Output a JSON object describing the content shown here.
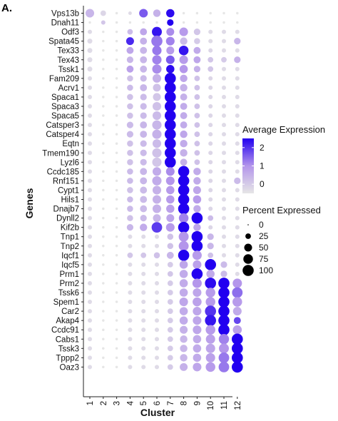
{
  "panel_label": "A.",
  "chart_data": {
    "type": "dotplot",
    "xlabel": "Cluster",
    "ylabel": "Genes",
    "clusters": [
      "1",
      "2",
      "3",
      "4",
      "5",
      "6",
      "7",
      "8",
      "9",
      "10",
      "11",
      "12"
    ],
    "genes": [
      "Vps13b",
      "Dnah11",
      "Odf3",
      "Spata45",
      "Tex33",
      "Tex43",
      "Tssk1",
      "Fam209",
      "Acrv1",
      "Spaca1",
      "Spaca3",
      "Spaca5",
      "Catsper3",
      "Catsper4",
      "Eqtn",
      "Tmem190",
      "Lyzl6",
      "Ccdc185",
      "Rnf151",
      "Cypt1",
      "Hils1",
      "Dnajb7",
      "Dynll2",
      "Kif2b",
      "Tnp1",
      "Tnp2",
      "Iqcf1",
      "Iqcf5",
      "Prm1",
      "Prm2",
      "Tssk6",
      "Spem1",
      "Car2",
      "Akap4",
      "Ccdc91",
      "Cabs1",
      "Tssk3",
      "Tppp2",
      "Oaz3"
    ],
    "avg_expression": [
      [
        0.4,
        -0.2,
        -0.5,
        -0.3,
        1.6,
        0.5,
        2.4,
        -0.5,
        -0.5,
        -0.5,
        -0.5,
        -0.5
      ],
      [
        -0.5,
        0.1,
        -0.5,
        -0.5,
        -0.5,
        -0.5,
        2.5,
        -0.5,
        -0.5,
        -0.5,
        -0.5,
        -0.5
      ],
      [
        -0.3,
        -0.5,
        -0.5,
        0.3,
        0.7,
        2.3,
        1.1,
        0.9,
        0.1,
        -0.3,
        -0.3,
        -0.3
      ],
      [
        -0.3,
        -0.5,
        -0.5,
        2.1,
        0.5,
        1.3,
        1.2,
        0.3,
        0.0,
        -0.3,
        -0.3,
        0.4
      ],
      [
        -0.3,
        -0.5,
        -0.5,
        0.7,
        0.4,
        1.3,
        0.9,
        2.3,
        0.6,
        -0.2,
        -0.3,
        -0.3
      ],
      [
        -0.3,
        -0.5,
        -0.5,
        0.4,
        0.4,
        1.2,
        1.6,
        0.9,
        0.7,
        0.1,
        0.0,
        0.5
      ],
      [
        -0.3,
        -0.5,
        -0.5,
        0.8,
        0.4,
        1.1,
        2.4,
        1.0,
        0.5,
        0.1,
        -0.3,
        -0.3
      ],
      [
        -0.3,
        -0.5,
        -0.5,
        0.2,
        0.3,
        0.5,
        2.5,
        0.7,
        0.2,
        -0.2,
        -0.3,
        -0.3
      ],
      [
        -0.3,
        -0.5,
        -0.5,
        0.3,
        0.4,
        0.2,
        2.5,
        0.5,
        0.2,
        -0.2,
        -0.3,
        -0.3
      ],
      [
        -0.3,
        -0.5,
        -0.5,
        0.2,
        0.3,
        0.1,
        2.5,
        0.5,
        0.2,
        -0.2,
        -0.3,
        -0.3
      ],
      [
        -0.3,
        -0.5,
        -0.5,
        0.2,
        0.3,
        0.2,
        2.5,
        0.6,
        0.2,
        -0.2,
        -0.3,
        -0.3
      ],
      [
        -0.3,
        -0.5,
        -0.5,
        0.2,
        0.3,
        0.3,
        2.5,
        0.6,
        0.2,
        -0.2,
        -0.3,
        -0.3
      ],
      [
        -0.3,
        -0.5,
        -0.5,
        0.3,
        0.4,
        0.4,
        2.5,
        0.6,
        0.2,
        -0.2,
        -0.3,
        -0.3
      ],
      [
        -0.3,
        -0.5,
        -0.5,
        0.3,
        0.4,
        0.5,
        2.5,
        0.7,
        0.2,
        -0.2,
        -0.3,
        -0.3
      ],
      [
        -0.3,
        -0.5,
        -0.5,
        0.2,
        0.3,
        0.3,
        2.5,
        0.6,
        0.2,
        -0.2,
        -0.3,
        -0.3
      ],
      [
        -0.3,
        -0.5,
        -0.5,
        0.2,
        0.3,
        0.2,
        2.5,
        0.5,
        0.2,
        -0.2,
        -0.3,
        -0.3
      ],
      [
        -0.3,
        -0.5,
        -0.5,
        0.2,
        0.3,
        0.1,
        2.5,
        0.5,
        0.2,
        -0.2,
        -0.3,
        -0.3
      ],
      [
        -0.3,
        -0.5,
        -0.5,
        0.3,
        0.4,
        0.6,
        1.1,
        2.5,
        0.6,
        -0.2,
        -0.3,
        -0.3
      ],
      [
        -0.3,
        -0.5,
        -0.5,
        0.3,
        0.4,
        0.6,
        1.0,
        2.5,
        0.6,
        -0.2,
        -0.3,
        0.3
      ],
      [
        -0.3,
        -0.5,
        -0.5,
        0.2,
        0.3,
        0.5,
        0.9,
        2.5,
        0.7,
        -0.2,
        -0.3,
        -0.3
      ],
      [
        -0.3,
        -0.5,
        -0.5,
        0.3,
        0.3,
        0.5,
        0.9,
        2.5,
        0.9,
        -0.2,
        -0.3,
        -0.3
      ],
      [
        -0.3,
        -0.5,
        -0.5,
        0.3,
        0.3,
        0.5,
        0.8,
        2.5,
        0.6,
        -0.2,
        -0.3,
        -0.3
      ],
      [
        -0.3,
        -0.5,
        -0.5,
        0.2,
        0.3,
        0.4,
        0.7,
        1.2,
        2.5,
        0.3,
        -0.3,
        -0.3
      ],
      [
        -0.3,
        -0.5,
        -0.5,
        0.4,
        0.6,
        1.9,
        0.9,
        2.5,
        0.7,
        -0.2,
        -0.3,
        -0.3
      ],
      [
        -0.3,
        -0.5,
        -0.5,
        -0.3,
        -0.3,
        -0.3,
        0.2,
        1.0,
        2.5,
        0.4,
        -0.3,
        -0.3
      ],
      [
        -0.3,
        -0.5,
        -0.5,
        -0.3,
        -0.3,
        -0.3,
        0.2,
        1.0,
        2.5,
        0.4,
        -0.3,
        -0.3
      ],
      [
        -0.3,
        -0.5,
        -0.5,
        0.1,
        0.1,
        0.2,
        0.4,
        2.5,
        0.9,
        0.2,
        -0.3,
        -0.3
      ],
      [
        -0.3,
        -0.5,
        -0.5,
        -0.3,
        -0.3,
        -0.3,
        0.0,
        0.7,
        0.8,
        2.5,
        0.3,
        -0.3
      ],
      [
        -0.3,
        -0.5,
        -0.5,
        -0.3,
        -0.3,
        -0.3,
        0.1,
        0.6,
        2.5,
        0.6,
        0.3,
        -0.3
      ],
      [
        -0.3,
        -0.5,
        -0.5,
        -0.3,
        -0.3,
        -0.3,
        0.0,
        0.6,
        1.0,
        2.4,
        2.5,
        1.0
      ],
      [
        -0.3,
        -0.5,
        -0.5,
        -0.3,
        -0.3,
        -0.3,
        0.0,
        0.6,
        0.7,
        0.9,
        2.5,
        1.4
      ],
      [
        -0.3,
        -0.5,
        -0.5,
        -0.3,
        -0.3,
        -0.3,
        0.0,
        0.7,
        0.8,
        0.9,
        2.5,
        0.9
      ],
      [
        -0.3,
        -0.5,
        -0.5,
        -0.3,
        -0.3,
        -0.3,
        0.0,
        0.6,
        0.7,
        2.0,
        2.5,
        0.6
      ],
      [
        -0.3,
        -0.5,
        -0.5,
        -0.3,
        -0.3,
        -0.3,
        0.0,
        0.6,
        0.7,
        2.3,
        2.5,
        1.8
      ],
      [
        -0.3,
        -0.5,
        -0.5,
        -0.3,
        -0.3,
        -0.3,
        0.0,
        0.5,
        0.7,
        0.9,
        2.5,
        0.8
      ],
      [
        -0.3,
        -0.5,
        -0.5,
        -0.3,
        -0.3,
        -0.3,
        0.0,
        0.4,
        0.6,
        0.8,
        1.2,
        2.5
      ],
      [
        -0.3,
        -0.5,
        -0.5,
        -0.3,
        -0.3,
        -0.3,
        0.0,
        0.4,
        0.6,
        0.7,
        1.0,
        2.5
      ],
      [
        -0.3,
        -0.5,
        -0.5,
        -0.3,
        -0.3,
        -0.3,
        0.0,
        0.4,
        0.6,
        0.8,
        1.3,
        2.5
      ],
      [
        -0.3,
        -0.5,
        -0.5,
        -0.3,
        -0.3,
        -0.3,
        0.0,
        0.5,
        0.7,
        0.9,
        1.3,
        2.5
      ]
    ],
    "pct_expressed": [
      [
        60,
        25,
        5,
        10,
        60,
        45,
        55,
        5,
        5,
        5,
        5,
        5
      ],
      [
        5,
        15,
        5,
        5,
        5,
        5,
        35,
        5,
        5,
        5,
        5,
        5
      ],
      [
        15,
        5,
        5,
        25,
        40,
        80,
        50,
        60,
        35,
        15,
        15,
        15
      ],
      [
        20,
        5,
        5,
        50,
        40,
        100,
        60,
        45,
        30,
        15,
        15,
        35
      ],
      [
        20,
        5,
        5,
        40,
        40,
        70,
        50,
        75,
        40,
        15,
        15,
        15
      ],
      [
        20,
        5,
        5,
        35,
        40,
        70,
        60,
        60,
        40,
        25,
        25,
        35
      ],
      [
        20,
        5,
        5,
        40,
        40,
        70,
        55,
        55,
        35,
        25,
        15,
        15
      ],
      [
        15,
        5,
        5,
        30,
        35,
        60,
        100,
        45,
        25,
        15,
        15,
        15
      ],
      [
        15,
        5,
        5,
        30,
        40,
        50,
        100,
        45,
        25,
        15,
        15,
        15
      ],
      [
        15,
        5,
        5,
        30,
        35,
        50,
        100,
        40,
        25,
        15,
        15,
        15
      ],
      [
        15,
        5,
        5,
        30,
        35,
        60,
        100,
        40,
        25,
        15,
        15,
        15
      ],
      [
        15,
        5,
        5,
        30,
        35,
        60,
        100,
        40,
        25,
        15,
        15,
        15
      ],
      [
        15,
        5,
        5,
        35,
        40,
        70,
        100,
        40,
        25,
        15,
        15,
        15
      ],
      [
        15,
        5,
        5,
        35,
        40,
        70,
        100,
        45,
        25,
        15,
        15,
        15
      ],
      [
        15,
        5,
        5,
        30,
        35,
        60,
        100,
        45,
        25,
        15,
        15,
        15
      ],
      [
        15,
        5,
        5,
        30,
        35,
        70,
        100,
        45,
        25,
        15,
        15,
        15
      ],
      [
        15,
        5,
        5,
        30,
        35,
        70,
        100,
        40,
        25,
        15,
        15,
        15
      ],
      [
        15,
        5,
        5,
        30,
        40,
        60,
        60,
        100,
        45,
        15,
        15,
        15
      ],
      [
        15,
        5,
        5,
        30,
        40,
        70,
        60,
        100,
        45,
        15,
        15,
        35
      ],
      [
        15,
        5,
        5,
        30,
        40,
        60,
        55,
        100,
        50,
        15,
        15,
        15
      ],
      [
        15,
        5,
        5,
        30,
        40,
        60,
        55,
        100,
        55,
        15,
        15,
        15
      ],
      [
        15,
        5,
        5,
        30,
        40,
        60,
        55,
        100,
        45,
        15,
        15,
        15
      ],
      [
        15,
        5,
        5,
        30,
        35,
        50,
        50,
        75,
        100,
        25,
        15,
        15
      ],
      [
        15,
        5,
        5,
        35,
        45,
        90,
        60,
        100,
        45,
        15,
        15,
        15
      ],
      [
        15,
        5,
        5,
        15,
        15,
        15,
        30,
        80,
        100,
        35,
        15,
        15
      ],
      [
        15,
        5,
        5,
        15,
        15,
        15,
        30,
        80,
        100,
        35,
        15,
        15
      ],
      [
        15,
        5,
        5,
        25,
        25,
        30,
        40,
        100,
        70,
        25,
        15,
        15
      ],
      [
        15,
        5,
        5,
        15,
        15,
        15,
        25,
        55,
        60,
        100,
        35,
        15
      ],
      [
        15,
        5,
        5,
        15,
        15,
        15,
        25,
        55,
        100,
        55,
        35,
        15
      ],
      [
        15,
        5,
        5,
        15,
        15,
        15,
        25,
        55,
        70,
        100,
        100,
        70
      ],
      [
        15,
        5,
        5,
        15,
        15,
        15,
        25,
        55,
        60,
        75,
        100,
        90
      ],
      [
        15,
        5,
        5,
        15,
        15,
        15,
        25,
        60,
        65,
        75,
        100,
        75
      ],
      [
        15,
        5,
        5,
        15,
        15,
        15,
        25,
        55,
        60,
        100,
        100,
        60
      ],
      [
        15,
        5,
        5,
        15,
        15,
        15,
        25,
        55,
        60,
        100,
        100,
        40
      ],
      [
        15,
        5,
        5,
        15,
        15,
        15,
        25,
        50,
        60,
        75,
        100,
        65
      ],
      [
        15,
        5,
        5,
        15,
        15,
        15,
        25,
        45,
        55,
        70,
        85,
        100
      ],
      [
        15,
        5,
        5,
        15,
        15,
        15,
        25,
        45,
        55,
        70,
        80,
        100
      ],
      [
        15,
        5,
        5,
        15,
        15,
        15,
        25,
        45,
        55,
        70,
        90,
        100
      ],
      [
        15,
        5,
        5,
        15,
        15,
        15,
        25,
        50,
        60,
        75,
        90,
        100
      ]
    ],
    "color_scale": {
      "min": -0.5,
      "max": 2.5,
      "low_color": "#e6e6e6",
      "high_color": "#2200f0"
    },
    "legend_color": {
      "title": "Average Expression",
      "ticks": [
        "2",
        "1",
        "0"
      ],
      "tick_values": [
        2,
        1,
        0
      ]
    },
    "legend_size": {
      "title": "Percent Expressed",
      "ticks": [
        "0",
        "25",
        "50",
        "75",
        "100"
      ],
      "tick_values": [
        0,
        25,
        50,
        75,
        100
      ]
    }
  }
}
